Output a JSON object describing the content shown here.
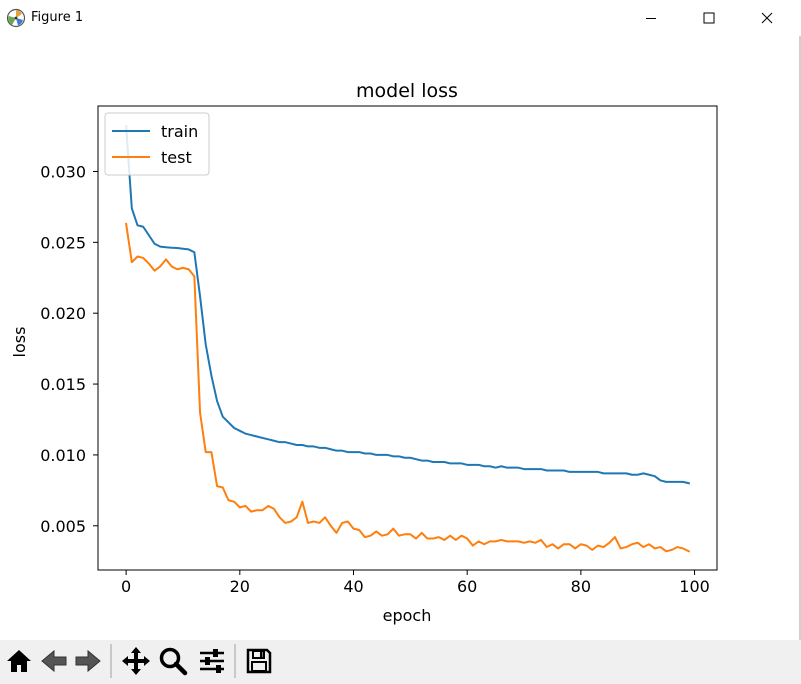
{
  "window": {
    "title": "Figure 1",
    "icons": [
      "app-icon",
      "minimize-icon",
      "maximize-icon",
      "close-icon"
    ]
  },
  "toolbar": {
    "icons": [
      "home-icon",
      "back-icon",
      "forward-icon",
      "pan-icon",
      "zoom-icon",
      "configure-subplots-icon",
      "save-icon"
    ]
  },
  "colors": {
    "train": "#1f77b4",
    "test": "#ff7f0e"
  },
  "chart_data": {
    "type": "line",
    "title": "model loss",
    "xlabel": "epoch",
    "ylabel": "loss",
    "xlim": [
      -4.95,
      103.95
    ],
    "ylim": [
      0.00188,
      0.03462
    ],
    "xticks": [
      0,
      20,
      40,
      60,
      80,
      100
    ],
    "yticks": [
      0.005,
      0.01,
      0.015,
      0.02,
      0.025,
      0.03
    ],
    "xtick_labels": [
      "0",
      "20",
      "40",
      "60",
      "80",
      "100"
    ],
    "ytick_labels": [
      "0.005",
      "0.010",
      "0.015",
      "0.020",
      "0.025",
      "0.030"
    ],
    "grid": false,
    "legend": {
      "position": "upper left",
      "entries": [
        "train",
        "test"
      ]
    },
    "series": [
      {
        "name": "train",
        "x": [
          0,
          1,
          2,
          3,
          4,
          5,
          6,
          7,
          8,
          9,
          10,
          11,
          12,
          13,
          14,
          15,
          16,
          17,
          18,
          19,
          20,
          21,
          22,
          23,
          24,
          25,
          26,
          27,
          28,
          29,
          30,
          31,
          32,
          33,
          34,
          35,
          36,
          37,
          38,
          39,
          40,
          41,
          42,
          43,
          44,
          45,
          46,
          47,
          48,
          49,
          50,
          51,
          52,
          53,
          54,
          55,
          56,
          57,
          58,
          59,
          60,
          61,
          62,
          63,
          64,
          65,
          66,
          67,
          68,
          69,
          70,
          71,
          72,
          73,
          74,
          75,
          76,
          77,
          78,
          79,
          80,
          81,
          82,
          83,
          84,
          85,
          86,
          87,
          88,
          89,
          90,
          91,
          92,
          93,
          94,
          95,
          96,
          97,
          98,
          99
        ],
        "values": [
          0.0332,
          0.0274,
          0.0262,
          0.0261,
          0.0255,
          0.0249,
          0.0247,
          0.02465,
          0.02462,
          0.0246,
          0.02455,
          0.0245,
          0.0243,
          0.0212,
          0.0178,
          0.0156,
          0.0138,
          0.0127,
          0.0123,
          0.0119,
          0.0117,
          0.0115,
          0.0114,
          0.0113,
          0.0112,
          0.0111,
          0.011,
          0.0109,
          0.0109,
          0.0108,
          0.0107,
          0.0107,
          0.0106,
          0.0106,
          0.0105,
          0.0105,
          0.0104,
          0.0103,
          0.0103,
          0.0102,
          0.0102,
          0.0102,
          0.0101,
          0.0101,
          0.01,
          0.01,
          0.01,
          0.0099,
          0.0099,
          0.0098,
          0.0098,
          0.0097,
          0.0096,
          0.0096,
          0.0095,
          0.0095,
          0.0095,
          0.0094,
          0.0094,
          0.0094,
          0.0093,
          0.0093,
          0.0093,
          0.0092,
          0.0092,
          0.0091,
          0.0092,
          0.0091,
          0.0091,
          0.0091,
          0.009,
          0.009,
          0.009,
          0.009,
          0.0089,
          0.0089,
          0.0089,
          0.0089,
          0.0088,
          0.0088,
          0.0088,
          0.0088,
          0.0088,
          0.0088,
          0.0087,
          0.0087,
          0.0087,
          0.0087,
          0.0087,
          0.0086,
          0.0086,
          0.0087,
          0.0086,
          0.0085,
          0.0082,
          0.0081,
          0.0081,
          0.0081,
          0.0081,
          0.008
        ]
      },
      {
        "name": "test",
        "x": [
          0,
          1,
          2,
          3,
          4,
          5,
          6,
          7,
          8,
          9,
          10,
          11,
          12,
          13,
          14,
          15,
          16,
          17,
          18,
          19,
          20,
          21,
          22,
          23,
          24,
          25,
          26,
          27,
          28,
          29,
          30,
          31,
          32,
          33,
          34,
          35,
          36,
          37,
          38,
          39,
          40,
          41,
          42,
          43,
          44,
          45,
          46,
          47,
          48,
          49,
          50,
          51,
          52,
          53,
          54,
          55,
          56,
          57,
          58,
          59,
          60,
          61,
          62,
          63,
          64,
          65,
          66,
          67,
          68,
          69,
          70,
          71,
          72,
          73,
          74,
          75,
          76,
          77,
          78,
          79,
          80,
          81,
          82,
          83,
          84,
          85,
          86,
          87,
          88,
          89,
          90,
          91,
          92,
          93,
          94,
          95,
          96,
          97,
          98,
          99
        ],
        "values": [
          0.0263,
          0.0236,
          0.024,
          0.0239,
          0.0235,
          0.023,
          0.0233,
          0.0238,
          0.0233,
          0.0231,
          0.0232,
          0.0231,
          0.0226,
          0.013,
          0.0102,
          0.0102,
          0.0078,
          0.0077,
          0.0068,
          0.0067,
          0.0063,
          0.0064,
          0.006,
          0.0061,
          0.0061,
          0.0064,
          0.0062,
          0.0056,
          0.0052,
          0.0053,
          0.0056,
          0.0067,
          0.0052,
          0.0053,
          0.0052,
          0.0056,
          0.005,
          0.0045,
          0.0052,
          0.0053,
          0.0048,
          0.0047,
          0.0042,
          0.0043,
          0.0046,
          0.0043,
          0.0044,
          0.0048,
          0.0043,
          0.0044,
          0.0044,
          0.0041,
          0.0045,
          0.0041,
          0.0041,
          0.0042,
          0.004,
          0.0043,
          0.004,
          0.0043,
          0.0041,
          0.0036,
          0.0039,
          0.0037,
          0.0039,
          0.0039,
          0.004,
          0.0039,
          0.0039,
          0.0039,
          0.0038,
          0.0039,
          0.0038,
          0.004,
          0.0035,
          0.0037,
          0.0034,
          0.0037,
          0.0037,
          0.0034,
          0.0037,
          0.0036,
          0.0033,
          0.0036,
          0.0035,
          0.0038,
          0.0042,
          0.0034,
          0.0035,
          0.0037,
          0.0038,
          0.0035,
          0.0037,
          0.0034,
          0.0035,
          0.0032,
          0.0033,
          0.0035,
          0.0034,
          0.0032
        ]
      }
    ]
  }
}
